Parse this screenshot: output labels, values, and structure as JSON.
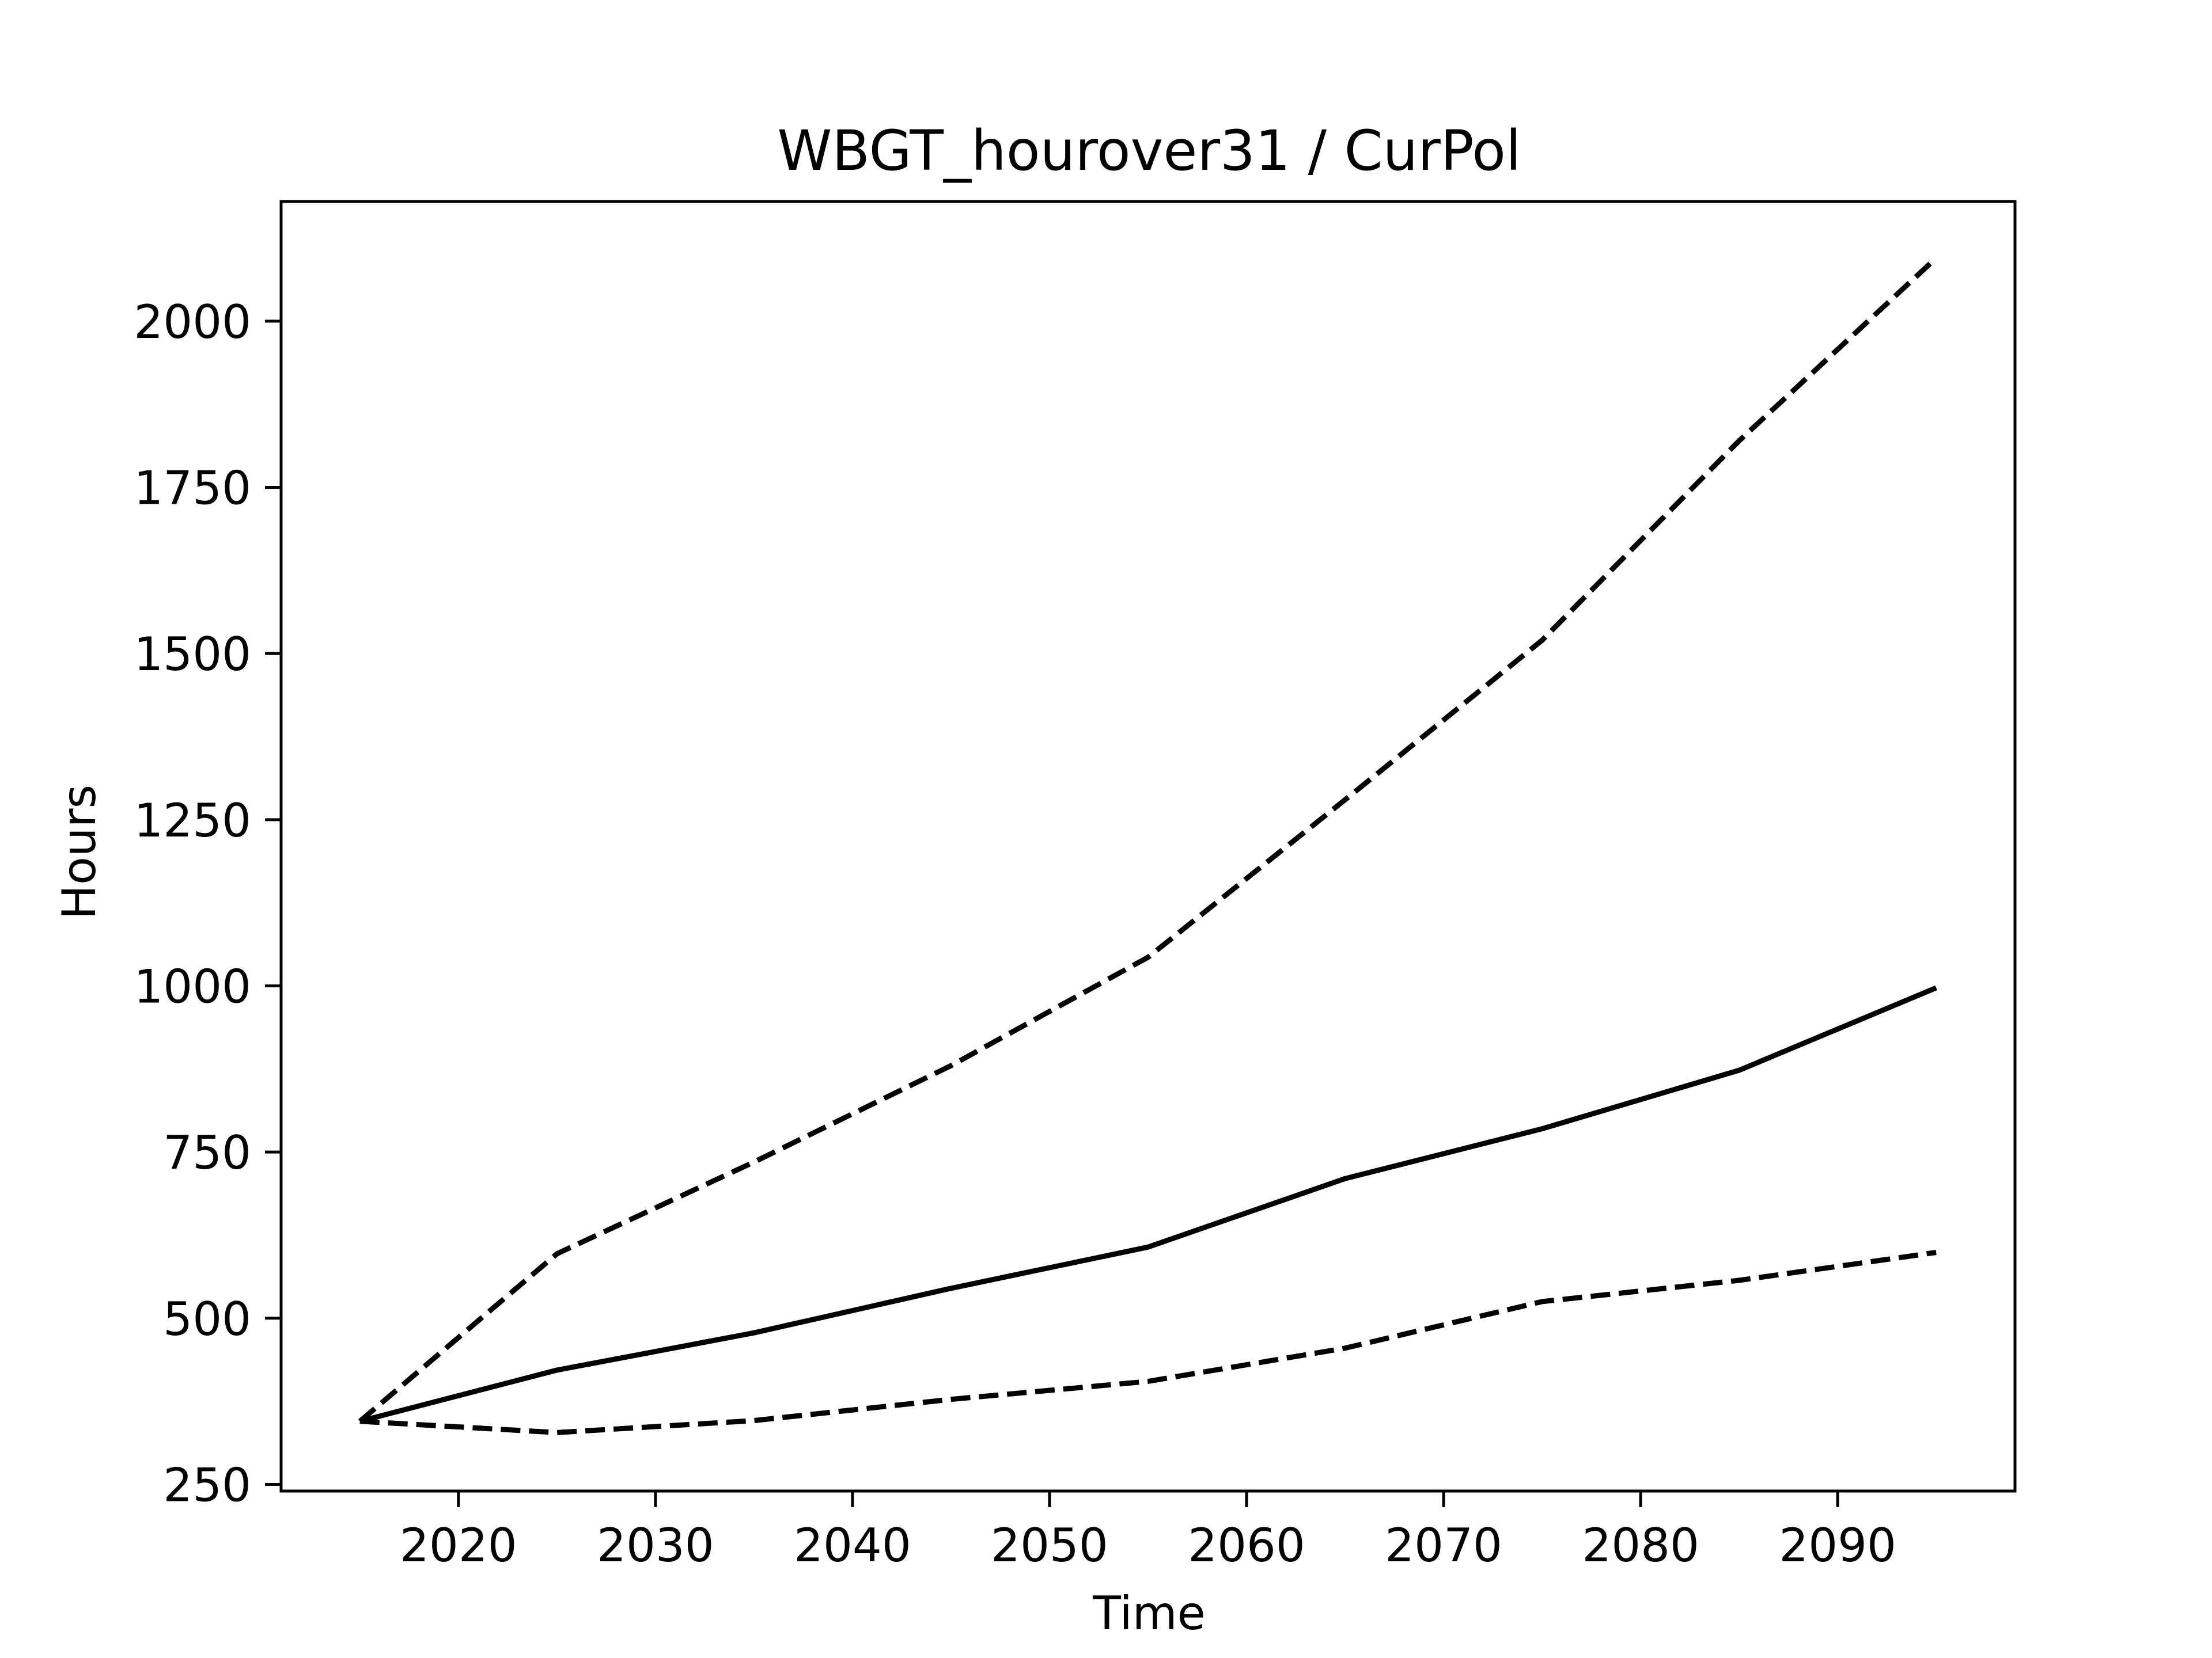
{
  "chart_data": {
    "type": "line",
    "title": "WBGT_hourover31 / CurPol",
    "xlabel": "Time",
    "ylabel": "Hours",
    "xlim": [
      2011,
      2099
    ],
    "ylim": [
      240,
      2180
    ],
    "xticks": [
      2020,
      2030,
      2040,
      2050,
      2060,
      2070,
      2080,
      2090
    ],
    "yticks": [
      250,
      500,
      750,
      1000,
      1250,
      1500,
      1750,
      2000
    ],
    "grid": false,
    "x": [
      2015,
      2025,
      2035,
      2045,
      2055,
      2065,
      2075,
      2085,
      2095
    ],
    "series": [
      {
        "style": "solid",
        "color": "#000000",
        "values": [
          345,
          422,
          478,
          545,
          607,
          710,
          785,
          873,
          997
        ]
      },
      {
        "style": "dashed",
        "color": "#000000",
        "values": [
          345,
          597,
          735,
          880,
          1043,
          1280,
          1520,
          1820,
          2095
        ]
      },
      {
        "style": "dashed",
        "color": "#000000",
        "values": [
          345,
          328,
          346,
          378,
          405,
          455,
          525,
          557,
          599
        ]
      }
    ]
  }
}
